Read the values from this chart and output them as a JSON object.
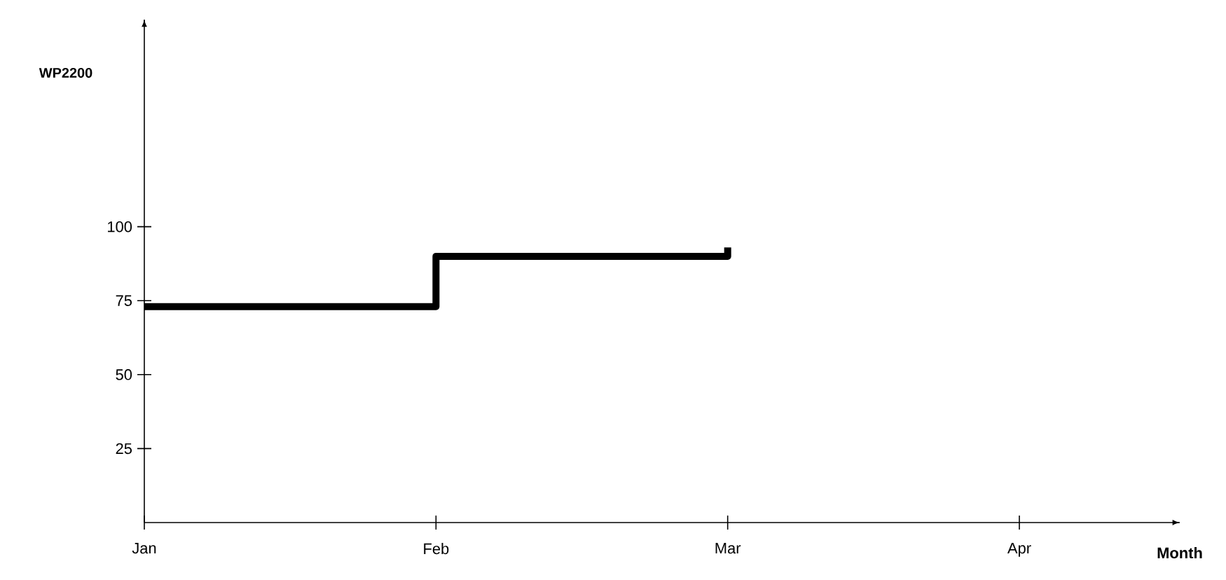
{
  "chart_data": {
    "type": "step",
    "xlabel": "Month",
    "ylabel": "WP2200",
    "categories": [
      "Jan",
      "Feb",
      "Mar",
      "Apr"
    ],
    "values": [
      73,
      90,
      93,
      null
    ],
    "color": "#000000",
    "ylim": [
      0,
      170
    ],
    "yticks": [
      25,
      50,
      75,
      100
    ],
    "grid": false
  }
}
